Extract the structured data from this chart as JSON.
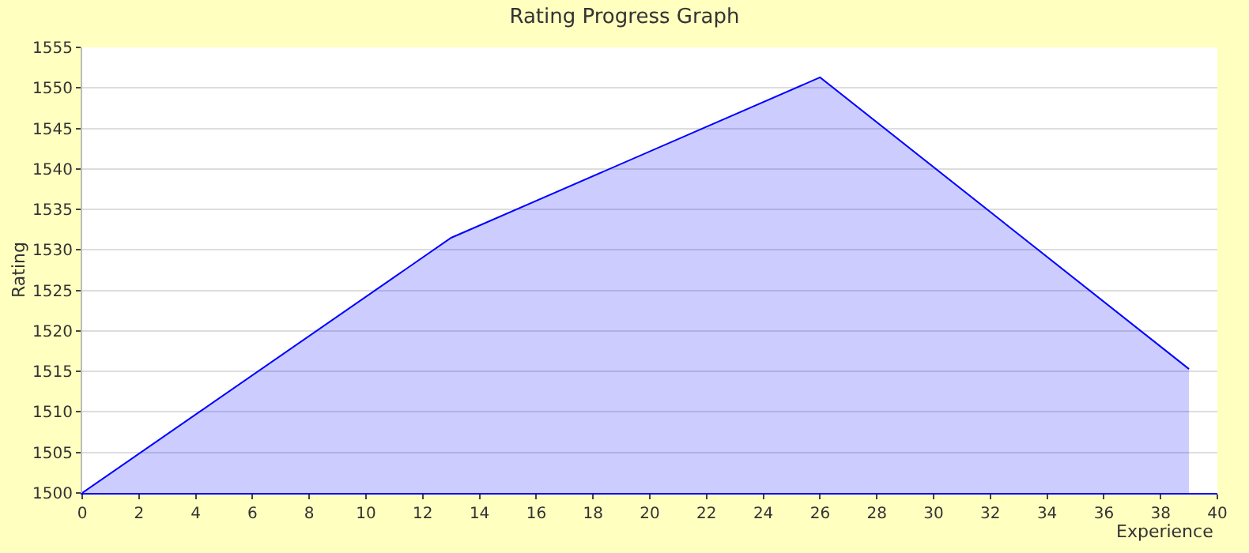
{
  "chart_data": {
    "type": "area",
    "title": "Rating Progress Graph",
    "xlabel": "Experience",
    "ylabel": "Rating",
    "x": [
      0,
      13,
      26,
      39
    ],
    "series": [
      {
        "color": "#0000ff",
        "values": [
          1500,
          1531.5,
          1551.3,
          1515.3
        ]
      }
    ],
    "xlim": [
      0,
      40
    ],
    "xticks": [
      0,
      2,
      4,
      6,
      8,
      10,
      12,
      14,
      16,
      18,
      20,
      22,
      24,
      26,
      28,
      30,
      32,
      34,
      36,
      38,
      40
    ],
    "ylim": [
      1500,
      1555
    ],
    "yticks": [
      1500,
      1505,
      1510,
      1515,
      1520,
      1525,
      1530,
      1535,
      1540,
      1545,
      1550,
      1555
    ],
    "grid": "y",
    "marker": "none",
    "line_style": "solid"
  }
}
